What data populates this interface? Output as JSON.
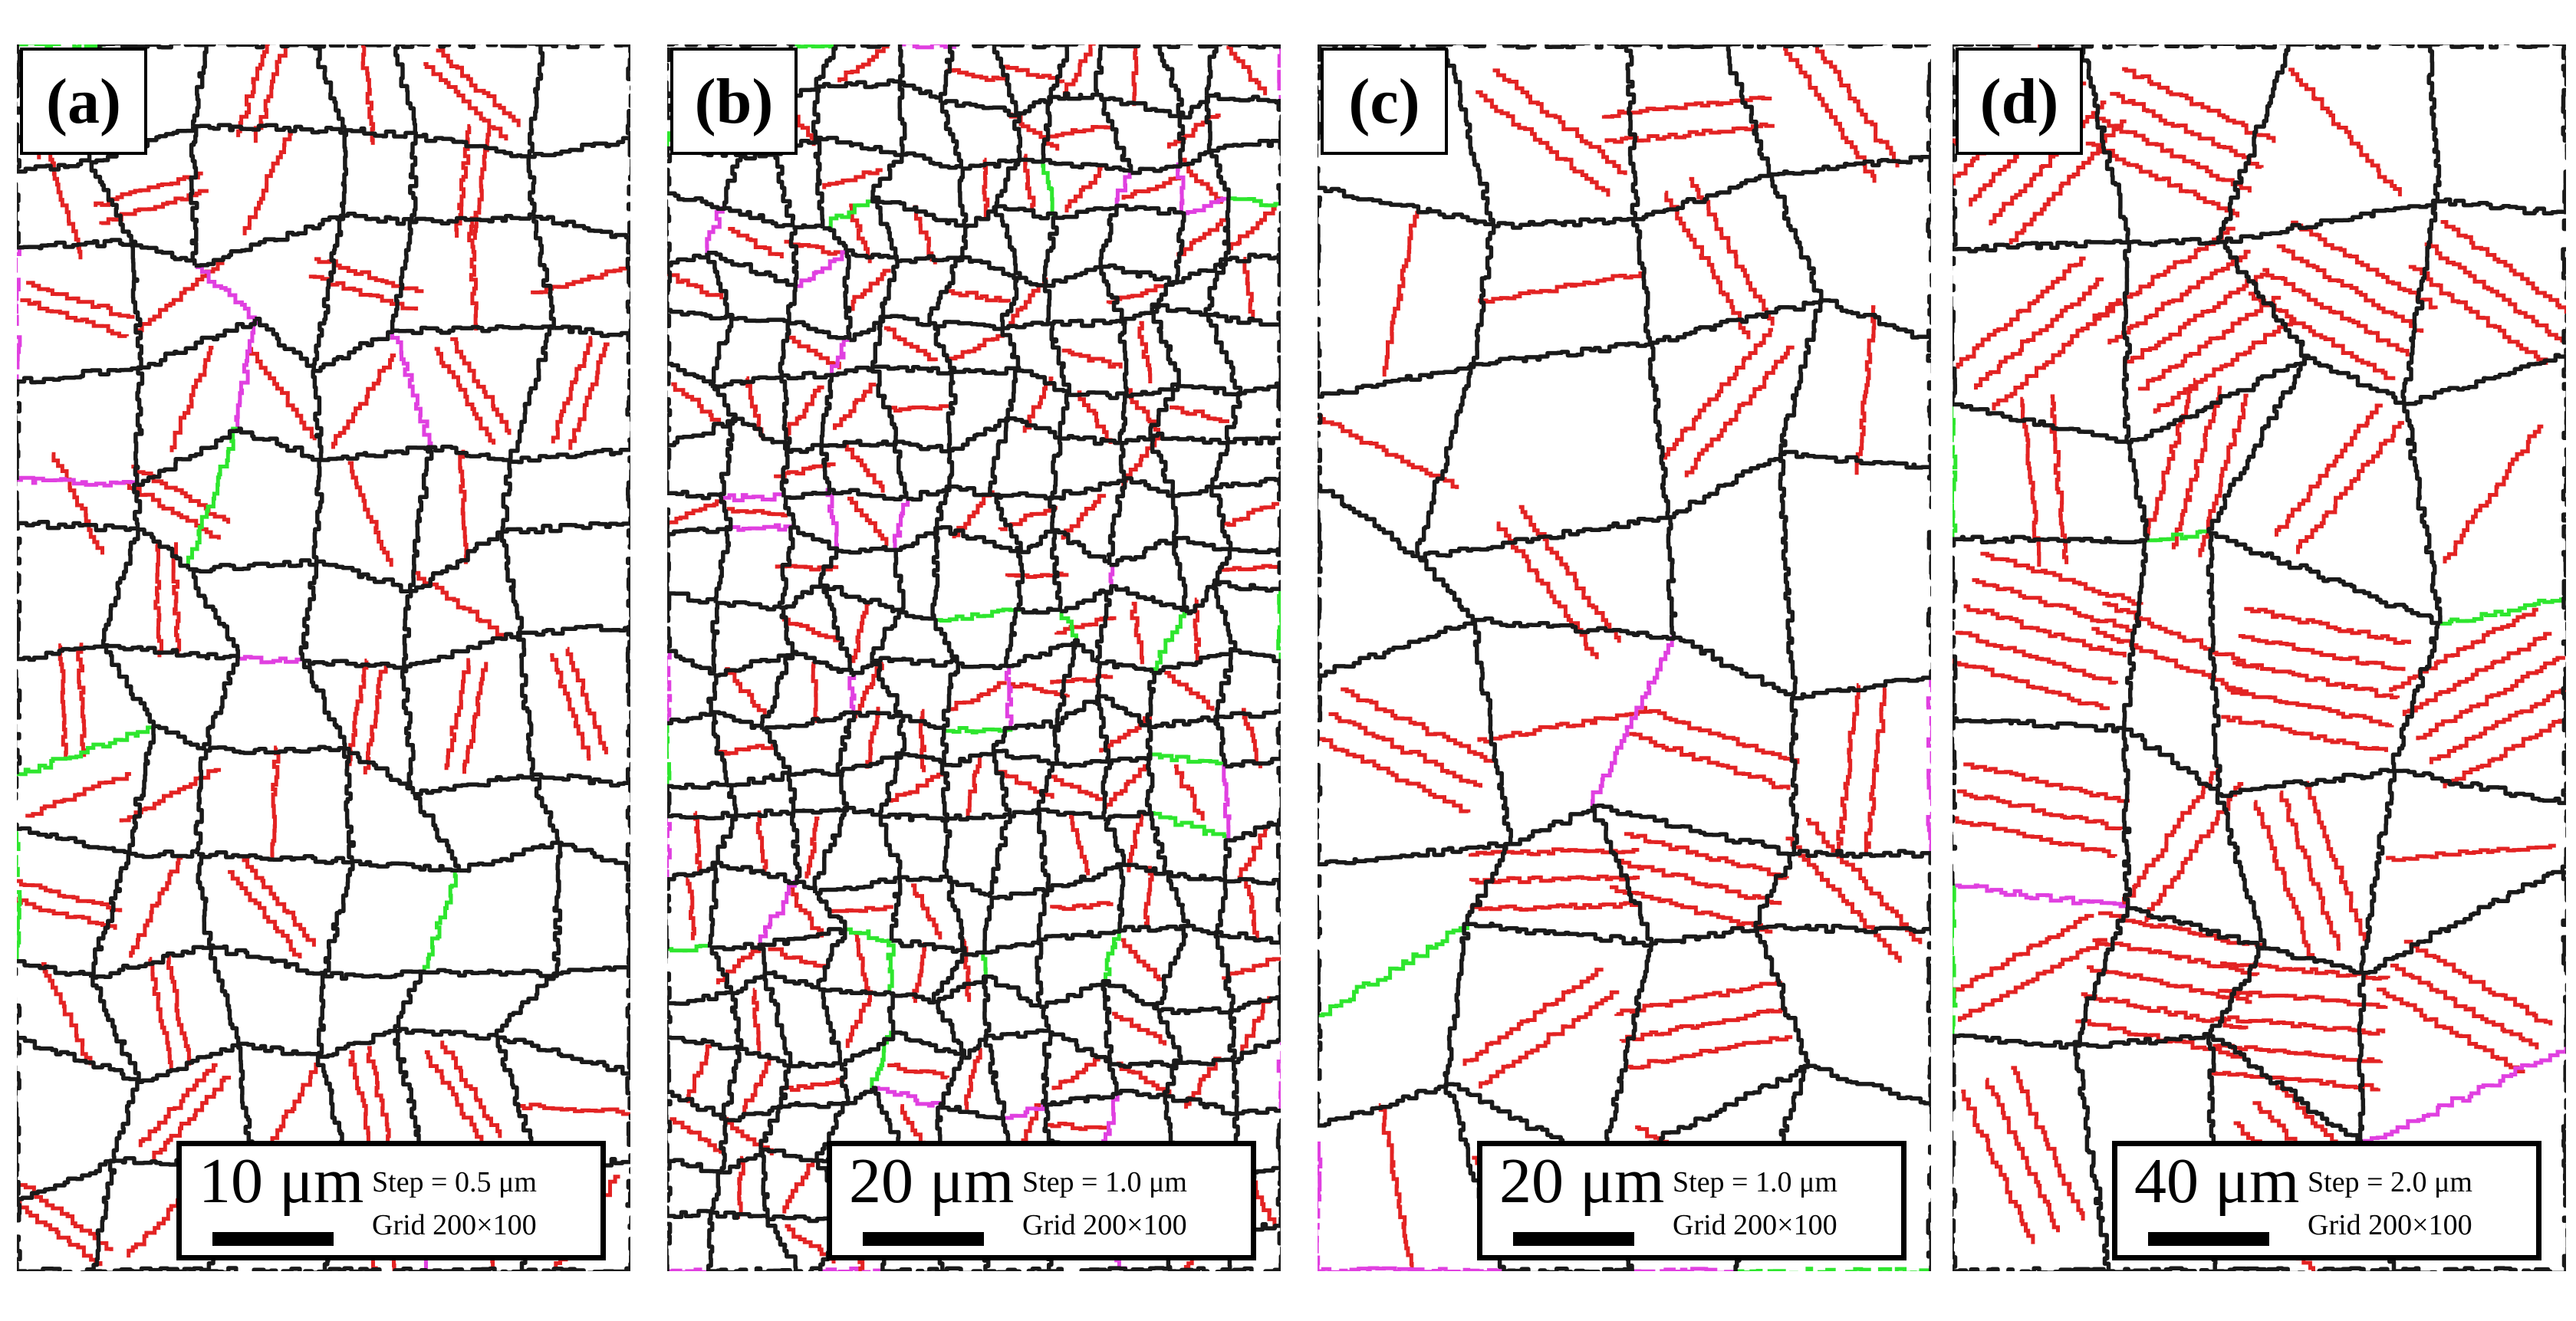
{
  "colors": {
    "high_angle_boundary": "#1a1a1a",
    "twin_boundary": "#e32323",
    "sigma9_boundary": "#e040e0",
    "sigma27_boundary": "#2ee62e",
    "background": "#ffffff"
  },
  "panels": [
    {
      "id": "a",
      "label": "(a)",
      "scale": {
        "length": "10 μm",
        "step": "Step = 0.5 μm",
        "grid": "Grid 200×100"
      }
    },
    {
      "id": "b",
      "label": "(b)",
      "scale": {
        "length": "20 μm",
        "step": "Step = 1.0 μm",
        "grid": "Grid 200×100"
      }
    },
    {
      "id": "c",
      "label": "(c)",
      "scale": {
        "length": "20 μm",
        "step": "Step = 1.0 μm",
        "grid": "Grid 200×100"
      }
    },
    {
      "id": "d",
      "label": "(d)",
      "scale": {
        "length": "40 μm",
        "step": "Step = 2.0 μm",
        "grid": "Grid 200×100"
      }
    }
  ]
}
